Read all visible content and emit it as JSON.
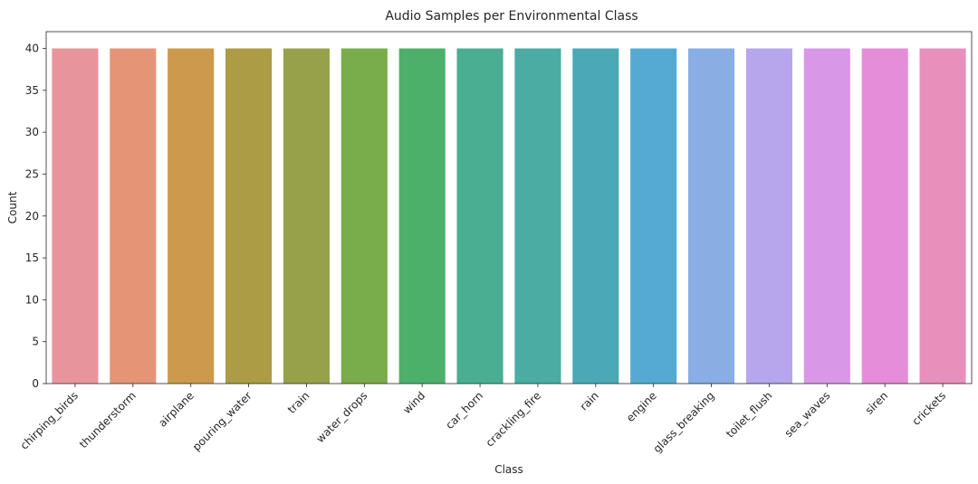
{
  "chart_data": {
    "type": "bar",
    "title": "Audio Samples per Environmental Class",
    "xlabel": "Class",
    "ylabel": "Count",
    "ylim": [
      0,
      42
    ],
    "yticks": [
      0,
      5,
      10,
      15,
      20,
      25,
      30,
      35,
      40
    ],
    "grid": false,
    "categories": [
      "chirping_birds",
      "thunderstorm",
      "airplane",
      "pouring_water",
      "train",
      "water_drops",
      "wind",
      "car_horn",
      "crackling_fire",
      "rain",
      "engine",
      "glass_breaking",
      "toilet_flush",
      "sea_waves",
      "siren",
      "crickets"
    ],
    "values": [
      40,
      40,
      40,
      40,
      40,
      40,
      40,
      40,
      40,
      40,
      40,
      40,
      40,
      40,
      40,
      40
    ],
    "colors": [
      "#e8949c",
      "#e69476",
      "#cb9a4c",
      "#ac9c45",
      "#97a14a",
      "#79ac4a",
      "#4cb06b",
      "#4aae93",
      "#4aaca2",
      "#4ba9b5",
      "#54aad2",
      "#88aee4",
      "#b7a6ec",
      "#d997e7",
      "#e68dd9",
      "#e890bc"
    ]
  }
}
